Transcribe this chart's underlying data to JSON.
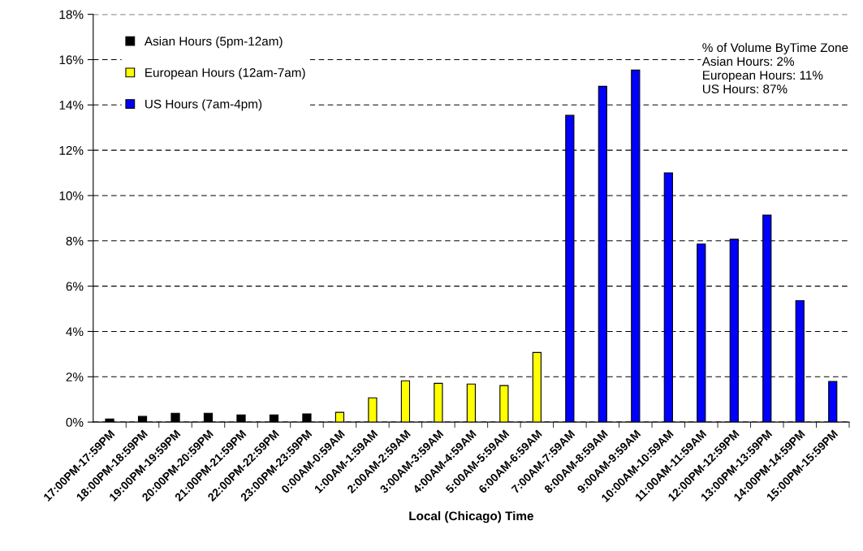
{
  "chart_data": {
    "type": "bar",
    "xlabel": "Local (Chicago) Time",
    "categories": [
      "17:00PM-17:59PM",
      "18:00PM-18:59PM",
      "19:00PM-19:59PM",
      "20:00PM-20:59PM",
      "21:00PM-21:59PM",
      "22:00PM-22:59PM",
      "23:00PM-23:59PM",
      "0:00AM-0:59AM",
      "1:00AM-1:59AM",
      "2:00AM-2:59AM",
      "3:00AM-3:59AM",
      "4:00AM-4:59AM",
      "5:00AM-5:59AM",
      "6:00AM-6:59AM",
      "7:00AM-7:59AM",
      "8:00AM-8:59AM",
      "9:00AM-9:59AM",
      "10:00AM-10:59AM",
      "11:00AM-11:59AM",
      "12:00PM-12:59PM",
      "13:00PM-13:59PM",
      "14:00PM-14:59PM",
      "15:00PM-15:59PM"
    ],
    "series": [
      {
        "name": "Asian Hours (5pm-12am)",
        "color": "#000000",
        "values": [
          0.14,
          0.25,
          0.39,
          0.39,
          0.32,
          0.32,
          0.36,
          null,
          null,
          null,
          null,
          null,
          null,
          null,
          null,
          null,
          null,
          null,
          null,
          null,
          null,
          null,
          null
        ]
      },
      {
        "name": "European Hours (12am-7am)",
        "color": "#ffff00",
        "values": [
          null,
          null,
          null,
          null,
          null,
          null,
          null,
          0.43,
          1.07,
          1.82,
          1.71,
          1.68,
          1.61,
          3.07,
          null,
          null,
          null,
          null,
          null,
          null,
          null,
          null,
          null
        ]
      },
      {
        "name": "US Hours (7am-4pm)",
        "color": "#0000ff",
        "values": [
          null,
          null,
          null,
          null,
          null,
          null,
          null,
          null,
          null,
          null,
          null,
          null,
          null,
          null,
          13.54,
          14.82,
          15.54,
          11.0,
          7.86,
          8.07,
          9.14,
          5.36,
          1.79
        ]
      }
    ],
    "ylim": [
      0,
      18
    ],
    "yticks": [
      {
        "value": 0,
        "label": "0%"
      },
      {
        "value": 2,
        "label": "2%"
      },
      {
        "value": 4,
        "label": "4%"
      },
      {
        "value": 6,
        "label": "6%"
      },
      {
        "value": 8,
        "label": "8%"
      },
      {
        "value": 10,
        "label": "10%"
      },
      {
        "value": 12,
        "label": "12%"
      },
      {
        "value": 14,
        "label": "14%"
      },
      {
        "value": 16,
        "label": "16%"
      },
      {
        "value": 18,
        "label": "18%"
      }
    ],
    "grid": "y",
    "legend": "top left",
    "annotations": [
      "% of Volume ByTime Zone\nAsian Hours: 2%\nEuropean Hours: 11%\nUS Hours: 87%"
    ]
  }
}
